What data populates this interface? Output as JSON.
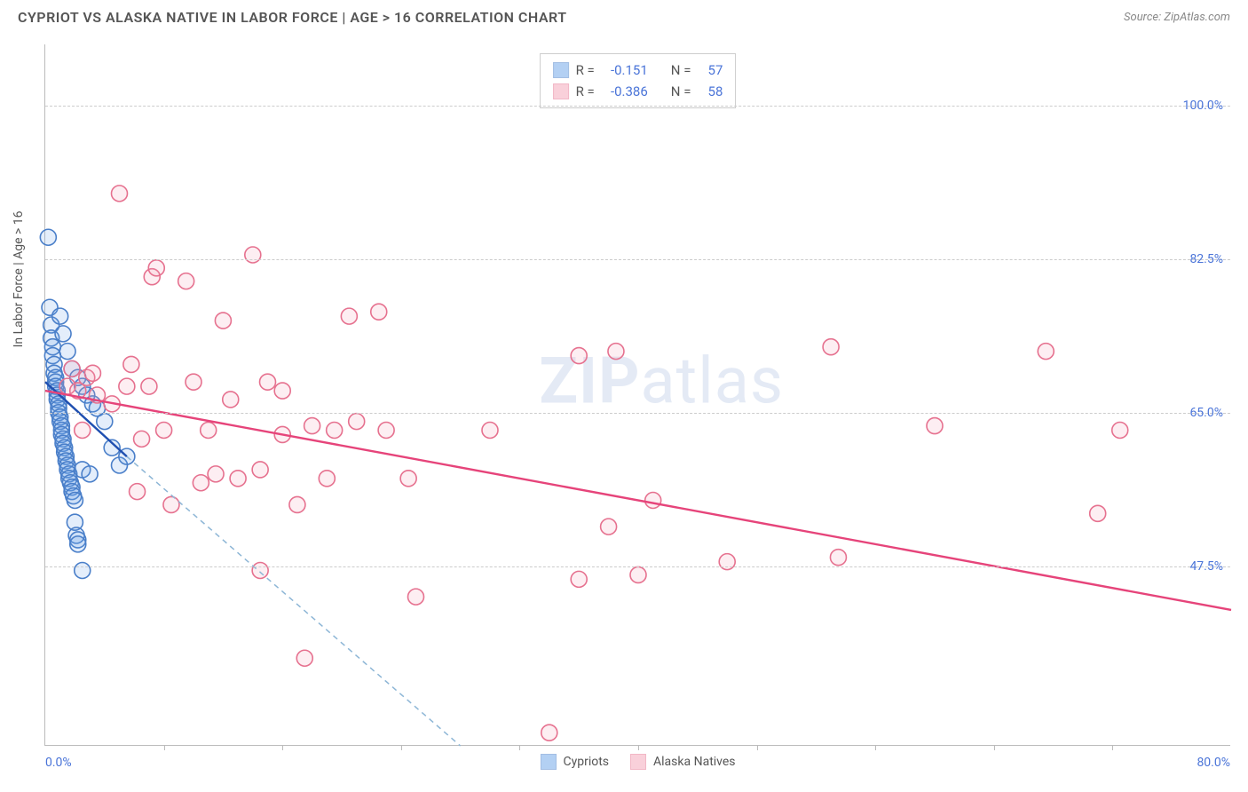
{
  "header": {
    "title": "CYPRIOT VS ALASKA NATIVE IN LABOR FORCE | AGE > 16 CORRELATION CHART",
    "source": "Source: ZipAtlas.com"
  },
  "watermark": {
    "bold": "ZIP",
    "rest": "atlas"
  },
  "chart": {
    "type": "scatter",
    "background_color": "#ffffff",
    "grid_color": "#cccccc",
    "axis_color": "#bbbbbb",
    "tick_label_color": "#4a74d8",
    "yaxis_title": "In Labor Force | Age > 16",
    "xlim": [
      0,
      80
    ],
    "ylim": [
      27,
      107
    ],
    "xlabel_min": "0.0%",
    "xlabel_max": "80.0%",
    "yticks": [
      {
        "v": 100.0,
        "label": "100.0%"
      },
      {
        "v": 82.5,
        "label": "82.5%"
      },
      {
        "v": 65.0,
        "label": "65.0%"
      },
      {
        "v": 47.5,
        "label": "47.5%"
      }
    ],
    "xticks": [
      8,
      16,
      24,
      32,
      40,
      48,
      56,
      64,
      72
    ],
    "marker_radius": 9,
    "marker_stroke_width": 1.6,
    "marker_fill_opacity": 0.18,
    "trend_line_width": 2.4,
    "series": [
      {
        "name": "Cypriots",
        "color": "#6aa2e8",
        "stroke": "#4a7fc9",
        "trend_color": "#1f4fb0",
        "extrap_color": "#8db6d6",
        "R": "-0.151",
        "N": "57",
        "trend": {
          "x1": 0,
          "y1": 68.5,
          "x2": 5.5,
          "y2": 60.0
        },
        "extrap": {
          "x1": 5.5,
          "y1": 60.0,
          "x2": 28,
          "y2": 27
        },
        "points": [
          [
            0.2,
            85.0
          ],
          [
            0.3,
            77.0
          ],
          [
            0.4,
            75.0
          ],
          [
            0.4,
            73.5
          ],
          [
            0.5,
            72.5
          ],
          [
            0.5,
            71.5
          ],
          [
            0.6,
            70.5
          ],
          [
            0.6,
            69.5
          ],
          [
            0.7,
            69.0
          ],
          [
            0.7,
            68.5
          ],
          [
            0.7,
            68.0
          ],
          [
            0.8,
            67.5
          ],
          [
            0.8,
            67.0
          ],
          [
            0.8,
            66.5
          ],
          [
            0.9,
            66.0
          ],
          [
            0.9,
            65.5
          ],
          [
            0.9,
            65.0
          ],
          [
            1.0,
            64.5
          ],
          [
            1.0,
            64.0
          ],
          [
            1.1,
            63.5
          ],
          [
            1.1,
            63.0
          ],
          [
            1.1,
            62.5
          ],
          [
            1.2,
            62.0
          ],
          [
            1.2,
            61.5
          ],
          [
            1.3,
            61.0
          ],
          [
            1.3,
            60.5
          ],
          [
            1.4,
            60.0
          ],
          [
            1.4,
            59.5
          ],
          [
            1.5,
            59.0
          ],
          [
            1.5,
            58.5
          ],
          [
            1.6,
            58.0
          ],
          [
            1.6,
            57.5
          ],
          [
            1.7,
            57.0
          ],
          [
            1.8,
            56.5
          ],
          [
            1.8,
            56.0
          ],
          [
            1.9,
            55.5
          ],
          [
            2.0,
            55.0
          ],
          [
            2.0,
            52.5
          ],
          [
            2.1,
            51.0
          ],
          [
            2.2,
            50.5
          ],
          [
            2.2,
            50.0
          ],
          [
            1.0,
            76.0
          ],
          [
            1.2,
            74.0
          ],
          [
            1.5,
            72.0
          ],
          [
            1.8,
            70.0
          ],
          [
            2.2,
            69.0
          ],
          [
            2.5,
            68.0
          ],
          [
            2.5,
            58.5
          ],
          [
            2.8,
            67.0
          ],
          [
            3.0,
            58.0
          ],
          [
            3.2,
            66.0
          ],
          [
            3.5,
            65.5
          ],
          [
            4.0,
            64.0
          ],
          [
            4.5,
            61.0
          ],
          [
            5.0,
            59.0
          ],
          [
            5.5,
            60.0
          ],
          [
            2.5,
            47.0
          ]
        ]
      },
      {
        "name": "Alaska Natives",
        "color": "#f4a3b6",
        "stroke": "#e6718f",
        "trend_color": "#e6447a",
        "extrap_color": "#e6447a",
        "R": "-0.386",
        "N": "58",
        "trend": {
          "x1": 0,
          "y1": 67.5,
          "x2": 80,
          "y2": 42.5
        },
        "extrap": null,
        "points": [
          [
            1.5,
            68.0
          ],
          [
            1.8,
            70.0
          ],
          [
            2.2,
            67.5
          ],
          [
            2.5,
            63.0
          ],
          [
            2.8,
            69.0
          ],
          [
            3.2,
            69.5
          ],
          [
            3.5,
            67.0
          ],
          [
            4.5,
            66.0
          ],
          [
            5.0,
            90.0
          ],
          [
            5.5,
            68.0
          ],
          [
            5.8,
            70.5
          ],
          [
            6.2,
            56.0
          ],
          [
            6.5,
            62.0
          ],
          [
            7.0,
            68.0
          ],
          [
            7.2,
            80.5
          ],
          [
            7.5,
            81.5
          ],
          [
            8.0,
            63.0
          ],
          [
            8.5,
            54.5
          ],
          [
            9.5,
            80.0
          ],
          [
            10.0,
            68.5
          ],
          [
            10.5,
            57.0
          ],
          [
            11.0,
            63.0
          ],
          [
            11.5,
            58.0
          ],
          [
            12.0,
            75.5
          ],
          [
            12.5,
            66.5
          ],
          [
            13.0,
            57.5
          ],
          [
            14.0,
            83.0
          ],
          [
            14.5,
            47.0
          ],
          [
            14.5,
            58.5
          ],
          [
            15.0,
            68.5
          ],
          [
            16.0,
            62.5
          ],
          [
            16.0,
            67.5
          ],
          [
            17.0,
            54.5
          ],
          [
            17.5,
            37.0
          ],
          [
            18.0,
            63.5
          ],
          [
            19.0,
            57.5
          ],
          [
            19.5,
            63.0
          ],
          [
            20.5,
            76.0
          ],
          [
            21.0,
            64.0
          ],
          [
            22.5,
            76.5
          ],
          [
            23.0,
            63.0
          ],
          [
            24.5,
            57.5
          ],
          [
            25.0,
            44.0
          ],
          [
            30.0,
            63.0
          ],
          [
            34.0,
            28.5
          ],
          [
            36.0,
            71.5
          ],
          [
            36.0,
            46.0
          ],
          [
            38.5,
            72.0
          ],
          [
            38.0,
            52.0
          ],
          [
            40.0,
            46.5
          ],
          [
            41.0,
            55.0
          ],
          [
            46.0,
            48.0
          ],
          [
            53.0,
            72.5
          ],
          [
            53.5,
            48.5
          ],
          [
            60.0,
            63.5
          ],
          [
            67.5,
            72.0
          ],
          [
            71.0,
            53.5
          ],
          [
            72.5,
            63.0
          ]
        ]
      }
    ]
  },
  "stats_legend": {
    "r_label": "R =",
    "n_label": "N ="
  },
  "bottom_legend": {
    "items": [
      "Cypriots",
      "Alaska Natives"
    ]
  }
}
